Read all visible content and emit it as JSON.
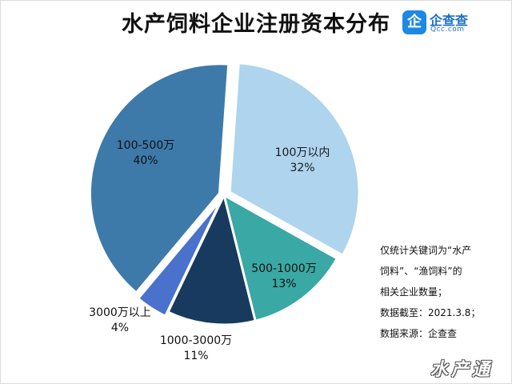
{
  "title": "水产饲料企业注册资本分布",
  "logo": {
    "icon": "企",
    "name": "企查查",
    "sub": "Qcc.com"
  },
  "note": {
    "lines": [
      "仅统计关键词为“水产",
      "饲料”、“渔饲料”的",
      "相关企业数量；",
      "数据截至：2021.3.8；",
      "数据来源：企查查"
    ]
  },
  "watermark": "水产通",
  "chart_data": {
    "type": "pie",
    "title": "水产饲料企业注册资本分布",
    "slices": [
      {
        "label": "100万以内",
        "value": 32,
        "pct_label": "32%",
        "color": "#aed4ee"
      },
      {
        "label": "500-1000万",
        "value": 13,
        "pct_label": "13%",
        "color": "#3aa8a4"
      },
      {
        "label": "1000-3000万",
        "value": 11,
        "pct_label": "11%",
        "color": "#173a5e"
      },
      {
        "label": "3000万以上",
        "value": 4,
        "pct_label": "4%",
        "color": "#4a72cc"
      },
      {
        "label": "100-500万",
        "value": 40,
        "pct_label": "40%",
        "color": "#3d7aaa"
      }
    ]
  }
}
